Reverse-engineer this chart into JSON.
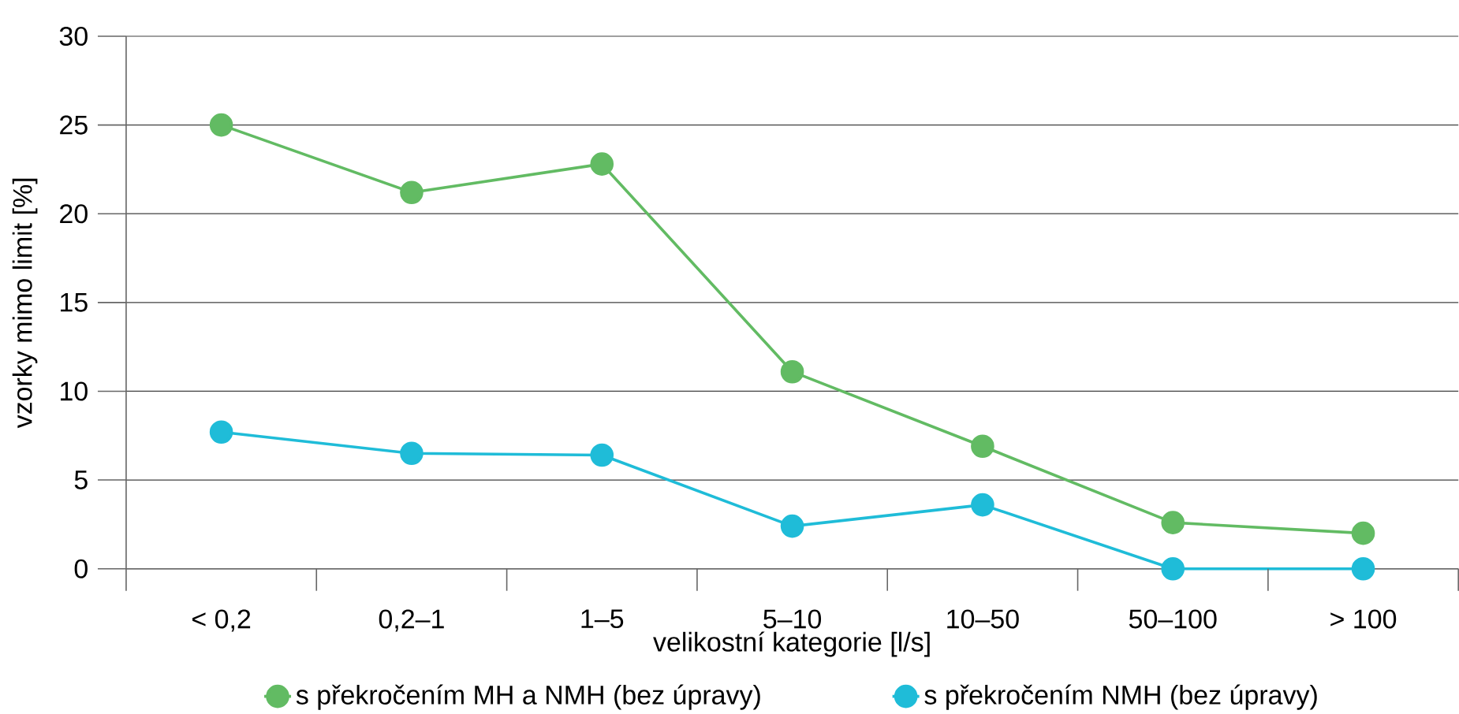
{
  "chart_data": {
    "type": "line",
    "xlabel": "velikostní kategorie [l/s]",
    "ylabel": "vzorky mimo limit [%]",
    "categories": [
      "< 0,2",
      "0,2–1",
      "1–5",
      "5–10",
      "10–50",
      "50–100",
      "> 100"
    ],
    "series": [
      {
        "name": "s překročením MH a NMH (bez úpravy)",
        "color": "#62bb63",
        "values": [
          25,
          21.2,
          22.8,
          11.1,
          6.9,
          2.6,
          2.0
        ]
      },
      {
        "name": "s překročením NMH (bez úpravy)",
        "color": "#1fbcd8",
        "values": [
          7.7,
          6.5,
          6.4,
          2.4,
          3.6,
          0,
          0
        ]
      }
    ],
    "ylim": [
      0,
      30
    ],
    "yticks": [
      0,
      5,
      10,
      15,
      20,
      25,
      30
    ],
    "grid": "y",
    "legend": "bottom",
    "marker": "circle"
  }
}
